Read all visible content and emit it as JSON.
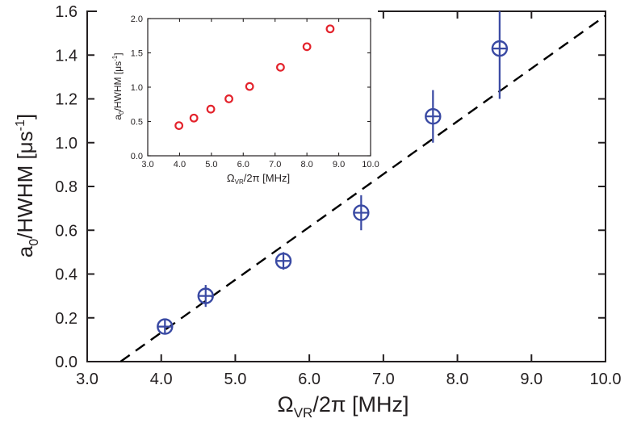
{
  "chart_data": [
    {
      "type": "scatter",
      "role": "main",
      "xlabel_symbol": "Ω",
      "xlabel_sub": "VR",
      "xlabel_rest": "/2π [MHz]",
      "ylabel_main": "a",
      "ylabel_sub": "0",
      "ylabel_rest": "/HWHM [μs",
      "ylabel_sup": "-1",
      "ylabel_close": "]",
      "xlim": [
        3.0,
        10.0
      ],
      "ylim": [
        0.0,
        1.6
      ],
      "xticks": [
        "3.0",
        "4.0",
        "5.0",
        "6.0",
        "7.0",
        "8.0",
        "9.0",
        "10.0"
      ],
      "yticks": [
        "0.0",
        "0.2",
        "0.4",
        "0.6",
        "0.8",
        "1.0",
        "1.2",
        "1.4",
        "1.6"
      ],
      "points": [
        {
          "x": 4.05,
          "y": 0.16,
          "yerr": 0.035
        },
        {
          "x": 4.6,
          "y": 0.3,
          "yerr": 0.05
        },
        {
          "x": 5.65,
          "y": 0.46,
          "yerr": 0.04
        },
        {
          "x": 6.7,
          "y": 0.68,
          "yerr": 0.08
        },
        {
          "x": 7.67,
          "y": 1.12,
          "yerr": 0.12
        },
        {
          "x": 8.57,
          "y": 1.43,
          "yerr": 0.23
        }
      ],
      "marker_color": "#3949a3",
      "fit_line": {
        "x": [
          3.45,
          10.0
        ],
        "y": [
          0.0,
          1.58
        ],
        "style": "dashed",
        "color": "#000000"
      }
    },
    {
      "type": "scatter",
      "role": "inset",
      "xlabel_symbol": "Ω",
      "xlabel_sub": "VR",
      "xlabel_rest": "/2π [MHz]",
      "ylabel_main": "a",
      "ylabel_sub": "0",
      "ylabel_rest": "/HWHM [μs",
      "ylabel_sup": "-1",
      "ylabel_close": "]",
      "xlim": [
        3.0,
        10.0
      ],
      "ylim": [
        0.0,
        2.0
      ],
      "xticks": [
        "3.0",
        "4.0",
        "5.0",
        "6.0",
        "7.0",
        "8.0",
        "9.0",
        "10.0"
      ],
      "yticks": [
        "0.0",
        "0.5",
        "1.0",
        "1.5",
        "2.0"
      ],
      "points": [
        {
          "x": 3.98,
          "y": 0.44
        },
        {
          "x": 4.45,
          "y": 0.55
        },
        {
          "x": 4.98,
          "y": 0.68
        },
        {
          "x": 5.55,
          "y": 0.83
        },
        {
          "x": 6.2,
          "y": 1.01
        },
        {
          "x": 7.17,
          "y": 1.29
        },
        {
          "x": 8.0,
          "y": 1.59
        },
        {
          "x": 8.73,
          "y": 1.85
        }
      ],
      "marker_color": "#e3232c"
    }
  ]
}
